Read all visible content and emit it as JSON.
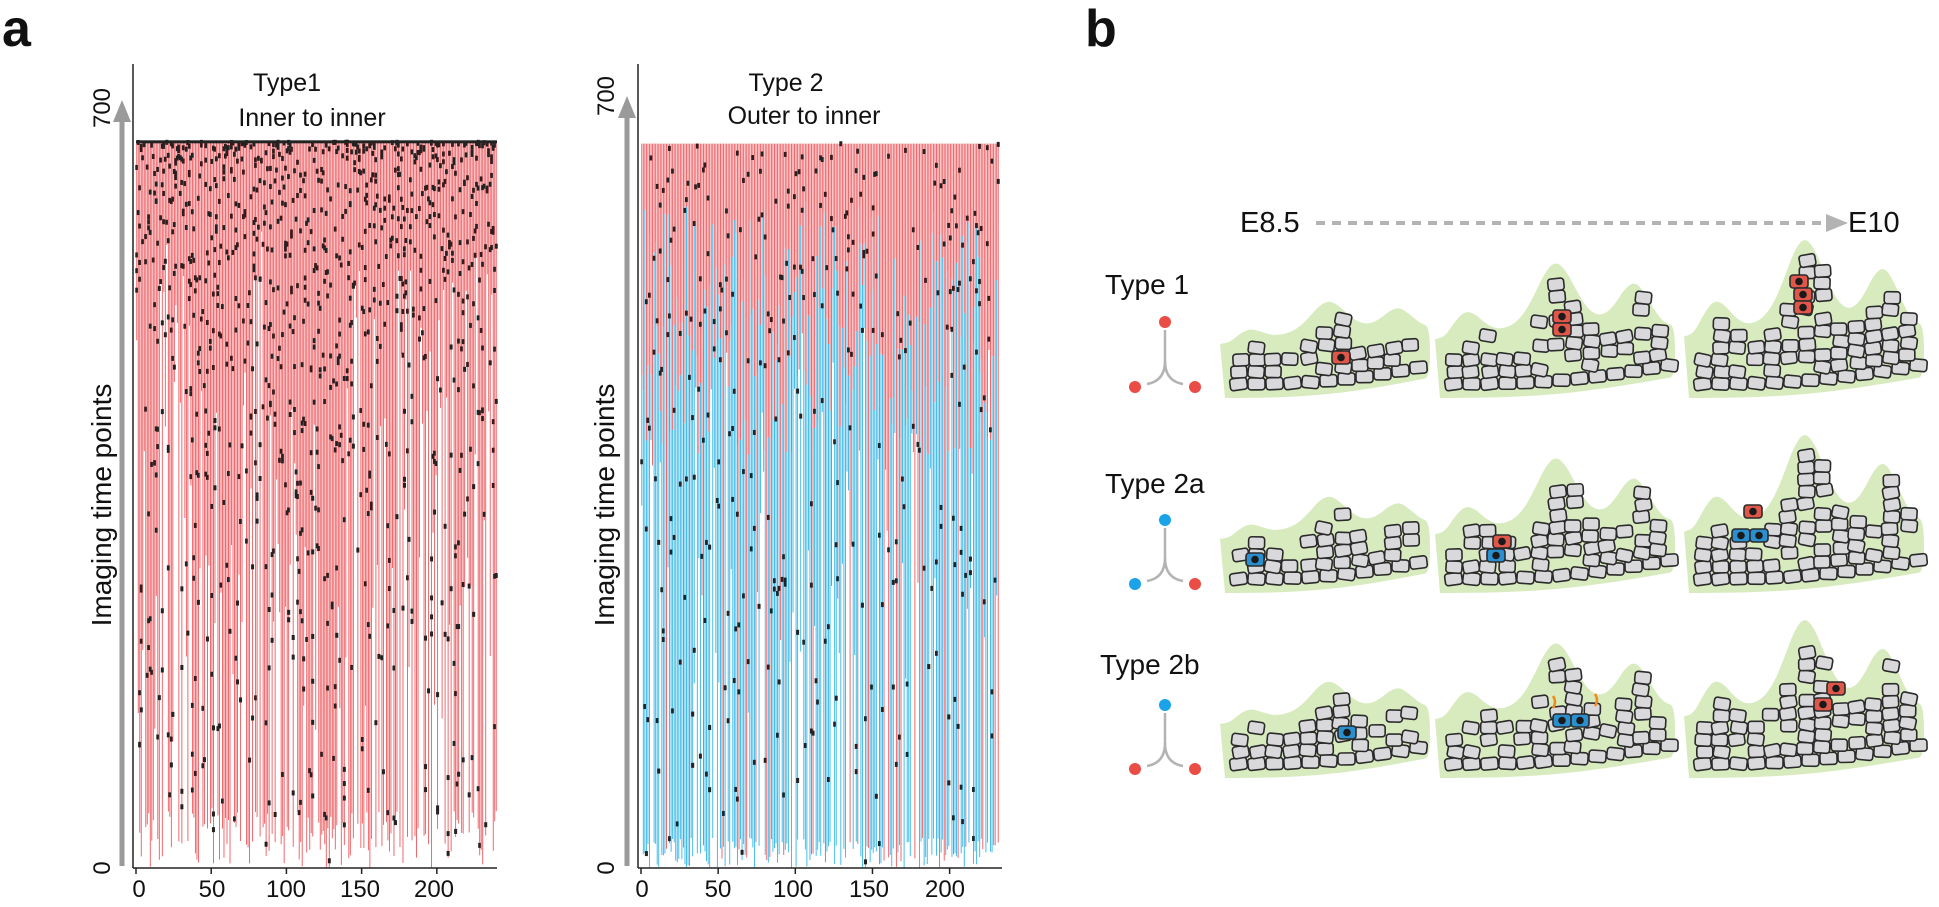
{
  "panels": {
    "a": "a",
    "b": "b"
  },
  "chart_data": [
    {
      "type": "lineage-tree",
      "title": "Type1",
      "subtitle": "Inner to inner",
      "ylabel": "Imaging time points",
      "xlim": [
        0,
        240
      ],
      "ylim": [
        0,
        700
      ],
      "y_ticks": [
        "0",
        "700"
      ],
      "x_ticks": [
        "0",
        "50",
        "100",
        "150",
        "200"
      ],
      "x_tick_values": [
        0,
        50,
        100,
        150,
        200
      ],
      "n_tracks": 240,
      "track_top": 658,
      "colors": {
        "inner": "#ee5a5f",
        "division": "#222222"
      }
    },
    {
      "type": "lineage-tree",
      "title": "Type 2",
      "subtitle": "Outer to inner",
      "ylabel": "Imaging time points",
      "xlim": [
        0,
        232
      ],
      "ylim": [
        0,
        700
      ],
      "y_ticks": [
        "0",
        "700"
      ],
      "x_ticks": [
        "0",
        "50",
        "100",
        "150",
        "200"
      ],
      "x_tick_values": [
        0,
        50,
        100,
        150,
        200
      ],
      "n_tracks": 232,
      "track_top": 662,
      "colors": {
        "inner": "#ee5a5f",
        "outer": "#34b6e8",
        "division": "#222222"
      }
    }
  ],
  "schematic": {
    "timeline": {
      "start": "E8.5",
      "end": "E10"
    },
    "rows": [
      {
        "label": "Type 1",
        "root_color": "#ea4c46",
        "left_color": "#ea4c46",
        "right_color": "#ea4c46"
      },
      {
        "label": "Type 2a",
        "root_color": "#1aa3e8",
        "left_color": "#1aa3e8",
        "right_color": "#ea4c46"
      },
      {
        "label": "Type 2b",
        "root_color": "#1aa3e8",
        "left_color": "#ea4c46",
        "right_color": "#ea4c46"
      }
    ],
    "colors": {
      "tissue": "#d8ebbf",
      "cell_fill": "#d9d9dc",
      "cell_stroke": "#2a2a2a",
      "inner_cell": "#e0574a",
      "outer_cell": "#2a8fce",
      "accent": "#f08a1c",
      "arrow": "#b3b3b3"
    }
  }
}
